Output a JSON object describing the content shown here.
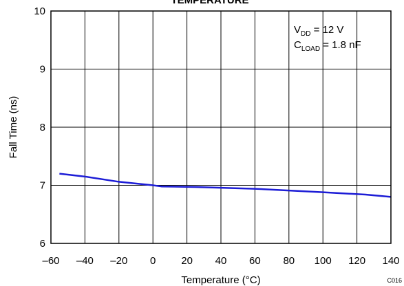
{
  "chart_data": {
    "type": "line",
    "title": "TEMPERATURE",
    "xlabel": "Temperature (°C)",
    "ylabel": "Fall Time (ns)",
    "xlim": [
      -60,
      140
    ],
    "ylim": [
      6,
      10
    ],
    "x_ticks": [
      -60,
      -40,
      -20,
      0,
      20,
      40,
      60,
      80,
      100,
      120,
      140
    ],
    "x_tick_labels": [
      "–60",
      "–40",
      "–20",
      "0",
      "20",
      "40",
      "60",
      "80",
      "100",
      "120",
      "140"
    ],
    "y_ticks": [
      6,
      7,
      8,
      9,
      10
    ],
    "y_tick_labels": [
      "6",
      "7",
      "8",
      "9",
      "10"
    ],
    "grid": true,
    "series": [
      {
        "color": "#1c1cd6",
        "x": [
          -55,
          -40,
          -20,
          0,
          5,
          25,
          60,
          80,
          100,
          125,
          140
        ],
        "y": [
          7.2,
          7.15,
          7.06,
          7.0,
          6.98,
          6.97,
          6.94,
          6.91,
          6.88,
          6.84,
          6.8
        ]
      }
    ],
    "annotations": {
      "line1": {
        "main": "V",
        "sub": "DD",
        "rest": " = 12 V"
      },
      "line2": {
        "main": "C",
        "sub": "LOAD",
        "rest": " = 1.8 nF"
      }
    },
    "figure_code": "C016"
  }
}
